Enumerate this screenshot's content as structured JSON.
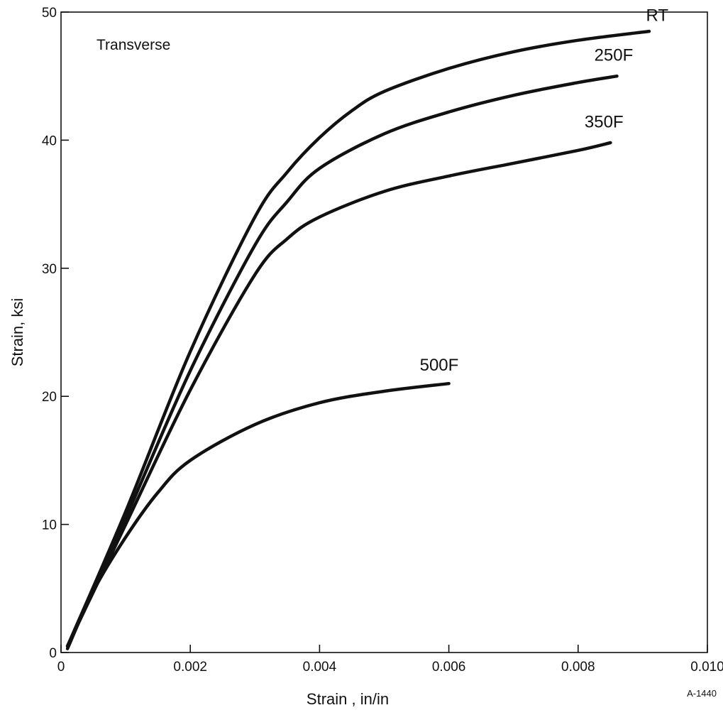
{
  "chart_data": {
    "type": "line",
    "title": "",
    "annotation": "Transverse",
    "xlabel": "Strain , in/in",
    "ylabel": "Strain, ksi",
    "figure_code": "A-1440",
    "xlim": [
      0,
      0.01
    ],
    "ylim": [
      0,
      50
    ],
    "x_ticks": [
      {
        "value": 0,
        "label": "0"
      },
      {
        "value": 0.002,
        "label": "0.002"
      },
      {
        "value": 0.004,
        "label": "0.004"
      },
      {
        "value": 0.006,
        "label": "0.006"
      },
      {
        "value": 0.008,
        "label": "0.008"
      },
      {
        "value": 0.01,
        "label": "0.010"
      }
    ],
    "y_ticks": [
      {
        "value": 0,
        "label": "0"
      },
      {
        "value": 10,
        "label": "10"
      },
      {
        "value": 20,
        "label": "20"
      },
      {
        "value": 30,
        "label": "30"
      },
      {
        "value": 40,
        "label": "40"
      },
      {
        "value": 50,
        "label": "50"
      }
    ],
    "grid": false,
    "legend": "none",
    "series": [
      {
        "name": "RT",
        "x": [
          0.0001,
          0.001,
          0.002,
          0.003,
          0.0035,
          0.004,
          0.0045,
          0.005,
          0.006,
          0.007,
          0.008,
          0.0091
        ],
        "y": [
          0.5,
          11,
          23.5,
          34,
          37.5,
          40.2,
          42.3,
          43.8,
          45.6,
          46.9,
          47.8,
          48.5
        ]
      },
      {
        "name": "250F",
        "x": [
          0.0001,
          0.001,
          0.002,
          0.003,
          0.0035,
          0.004,
          0.005,
          0.006,
          0.007,
          0.008,
          0.0086
        ],
        "y": [
          0.5,
          10.5,
          22,
          31.8,
          35.2,
          37.8,
          40.5,
          42.2,
          43.5,
          44.5,
          45
        ]
      },
      {
        "name": "350F",
        "x": [
          0.0001,
          0.001,
          0.002,
          0.003,
          0.0035,
          0.004,
          0.005,
          0.006,
          0.007,
          0.008,
          0.0085
        ],
        "y": [
          0.5,
          10,
          20.5,
          29.5,
          32.3,
          34,
          36,
          37.2,
          38.2,
          39.2,
          39.8
        ]
      },
      {
        "name": "500F",
        "x": [
          0.0001,
          0.0005,
          0.001,
          0.0015,
          0.002,
          0.003,
          0.004,
          0.005,
          0.006
        ],
        "y": [
          0.3,
          4.8,
          9,
          12.5,
          15,
          17.8,
          19.5,
          20.4,
          21
        ]
      }
    ],
    "curve_labels": [
      {
        "series": "RT",
        "text": "RT",
        "x": 0.00905,
        "y": 49.3
      },
      {
        "series": "250F",
        "text": "250F",
        "x": 0.00825,
        "y": 46.2
      },
      {
        "series": "350F",
        "text": "350F",
        "x": 0.0081,
        "y": 41
      },
      {
        "series": "500F",
        "text": "500F",
        "x": 0.00555,
        "y": 22
      }
    ]
  }
}
